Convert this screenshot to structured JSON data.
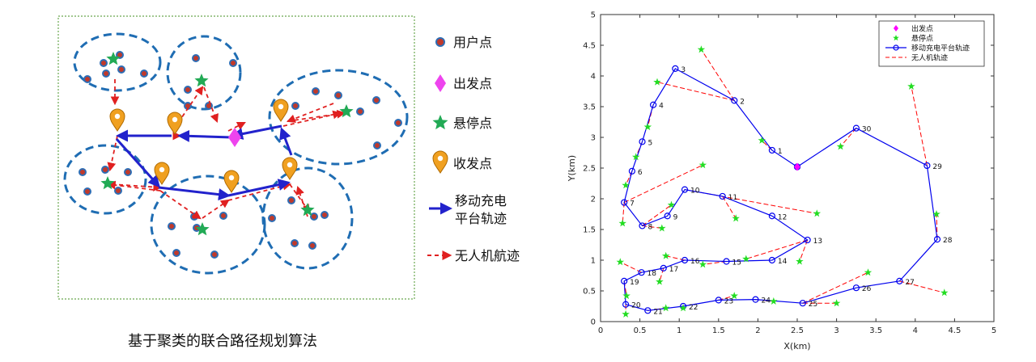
{
  "left_diagram": {
    "caption": "基于聚类的联合路径规划算法",
    "legend": {
      "user_point": "用户点",
      "start_point": "出发点",
      "hover_point": "悬停点",
      "transceiver_point": "收发点",
      "platform_track": "移动充电平台轨迹",
      "drone_track": "无人机航迹"
    },
    "colors": {
      "user_point": "#c0392b",
      "user_point_ring": "#2e6db4",
      "cluster": "#1f6db3",
      "start": "#ee44ee",
      "hover": "#22aa55",
      "transceiver": "#f0a020",
      "platform": "#2222cc",
      "drone": "#e02020",
      "frame": "#6aa84f"
    }
  },
  "chart_data": {
    "type": "line",
    "title": "",
    "xlabel": "X(km)",
    "ylabel": "Y(km)",
    "xlim": [
      0,
      5
    ],
    "ylim": [
      0,
      5
    ],
    "xticks": [
      "0",
      "0.5",
      "1",
      "1.5",
      "2",
      "2.5",
      "3",
      "3.5",
      "4",
      "4.5",
      "5"
    ],
    "yticks": [
      "0",
      "0.5",
      "1",
      "1.5",
      "2",
      "2.5",
      "3",
      "3.5",
      "4",
      "4.5",
      "5"
    ],
    "grid": false,
    "legend_position": "top-right",
    "series": [
      {
        "name": "出发点",
        "marker": "diamond",
        "color": "#ff00ff",
        "points": [
          {
            "x": 2.5,
            "y": 2.52
          }
        ]
      },
      {
        "name": "悬停点",
        "marker": "star",
        "color": "#22dd22",
        "points": [
          {
            "x": 1.28,
            "y": 4.43
          },
          {
            "x": 0.72,
            "y": 3.9
          },
          {
            "x": 2.05,
            "y": 2.95
          },
          {
            "x": 3.05,
            "y": 2.85
          },
          {
            "x": 3.95,
            "y": 3.83
          },
          {
            "x": 0.6,
            "y": 3.17
          },
          {
            "x": 0.45,
            "y": 2.68
          },
          {
            "x": 0.32,
            "y": 2.22
          },
          {
            "x": 1.3,
            "y": 2.55
          },
          {
            "x": 0.9,
            "y": 1.9
          },
          {
            "x": 0.78,
            "y": 1.52
          },
          {
            "x": 0.28,
            "y": 1.6
          },
          {
            "x": 1.72,
            "y": 1.68
          },
          {
            "x": 2.75,
            "y": 1.76
          },
          {
            "x": 4.27,
            "y": 1.75
          },
          {
            "x": 0.83,
            "y": 1.07
          },
          {
            "x": 1.3,
            "y": 0.93
          },
          {
            "x": 1.85,
            "y": 1.02
          },
          {
            "x": 2.53,
            "y": 0.98
          },
          {
            "x": 0.25,
            "y": 0.97
          },
          {
            "x": 0.75,
            "y": 0.65
          },
          {
            "x": 0.33,
            "y": 0.42
          },
          {
            "x": 0.32,
            "y": 0.12
          },
          {
            "x": 0.83,
            "y": 0.22
          },
          {
            "x": 1.05,
            "y": 0.22
          },
          {
            "x": 1.7,
            "y": 0.42
          },
          {
            "x": 2.2,
            "y": 0.33
          },
          {
            "x": 3.0,
            "y": 0.3
          },
          {
            "x": 3.4,
            "y": 0.8
          },
          {
            "x": 4.37,
            "y": 0.47
          }
        ]
      },
      {
        "name": "移动充电平台轨迹",
        "marker": "circle",
        "color": "#0000ee",
        "points": [
          {
            "x": 2.5,
            "y": 2.52,
            "label": ""
          },
          {
            "x": 2.18,
            "y": 2.79,
            "label": "1"
          },
          {
            "x": 1.7,
            "y": 3.6,
            "label": "2"
          },
          {
            "x": 0.95,
            "y": 4.12,
            "label": "3"
          },
          {
            "x": 0.67,
            "y": 3.53,
            "label": "4"
          },
          {
            "x": 0.53,
            "y": 2.93,
            "label": "5"
          },
          {
            "x": 0.4,
            "y": 2.45,
            "label": "6"
          },
          {
            "x": 0.3,
            "y": 1.94,
            "label": "7"
          },
          {
            "x": 0.53,
            "y": 1.56,
            "label": "8"
          },
          {
            "x": 0.85,
            "y": 1.72,
            "label": "9"
          },
          {
            "x": 1.07,
            "y": 2.15,
            "label": "10"
          },
          {
            "x": 1.55,
            "y": 2.04,
            "label": "11"
          },
          {
            "x": 2.18,
            "y": 1.72,
            "label": "12"
          },
          {
            "x": 2.63,
            "y": 1.33,
            "label": "13"
          },
          {
            "x": 2.18,
            "y": 1.0,
            "label": "14"
          },
          {
            "x": 1.6,
            "y": 0.98,
            "label": "15"
          },
          {
            "x": 1.07,
            "y": 1.0,
            "label": "16"
          },
          {
            "x": 0.8,
            "y": 0.87,
            "label": "17"
          },
          {
            "x": 0.52,
            "y": 0.8,
            "label": "18"
          },
          {
            "x": 0.3,
            "y": 0.66,
            "label": "19"
          },
          {
            "x": 0.32,
            "y": 0.28,
            "label": "20"
          },
          {
            "x": 0.6,
            "y": 0.18,
            "label": "21"
          },
          {
            "x": 1.05,
            "y": 0.25,
            "label": "22"
          },
          {
            "x": 1.5,
            "y": 0.35,
            "label": "23"
          },
          {
            "x": 1.97,
            "y": 0.36,
            "label": "24"
          },
          {
            "x": 2.57,
            "y": 0.3,
            "label": "25"
          },
          {
            "x": 3.25,
            "y": 0.55,
            "label": "26"
          },
          {
            "x": 3.8,
            "y": 0.66,
            "label": "27"
          },
          {
            "x": 4.28,
            "y": 1.34,
            "label": "28"
          },
          {
            "x": 4.15,
            "y": 2.54,
            "label": "29"
          },
          {
            "x": 3.25,
            "y": 3.15,
            "label": "30"
          },
          {
            "x": 2.5,
            "y": 2.52,
            "label": ""
          }
        ]
      },
      {
        "name": "无人机轨迹",
        "marker": "none",
        "color": "#ff0000",
        "style": "dashed",
        "segments": [
          [
            {
              "x": 2.18,
              "y": 2.79
            },
            {
              "x": 2.05,
              "y": 2.95
            }
          ],
          [
            {
              "x": 1.7,
              "y": 3.6
            },
            {
              "x": 1.28,
              "y": 4.43
            }
          ],
          [
            {
              "x": 1.7,
              "y": 3.6
            },
            {
              "x": 0.72,
              "y": 3.9
            }
          ],
          [
            {
              "x": 0.67,
              "y": 3.53
            },
            {
              "x": 0.6,
              "y": 3.17
            }
          ],
          [
            {
              "x": 0.53,
              "y": 2.93
            },
            {
              "x": 0.45,
              "y": 2.68
            }
          ],
          [
            {
              "x": 0.4,
              "y": 2.45
            },
            {
              "x": 0.32,
              "y": 2.22
            }
          ],
          [
            {
              "x": 0.3,
              "y": 1.94
            },
            {
              "x": 0.28,
              "y": 1.6
            }
          ],
          [
            {
              "x": 0.3,
              "y": 1.94
            },
            {
              "x": 1.3,
              "y": 2.55
            }
          ],
          [
            {
              "x": 0.53,
              "y": 1.56
            },
            {
              "x": 0.9,
              "y": 1.9
            }
          ],
          [
            {
              "x": 0.53,
              "y": 1.56
            },
            {
              "x": 0.78,
              "y": 1.52
            }
          ],
          [
            {
              "x": 1.55,
              "y": 2.04
            },
            {
              "x": 1.72,
              "y": 1.68
            }
          ],
          [
            {
              "x": 1.07,
              "y": 2.15
            },
            {
              "x": 2.75,
              "y": 1.76
            }
          ],
          [
            {
              "x": 2.63,
              "y": 1.33
            },
            {
              "x": 2.53,
              "y": 0.98
            }
          ],
          [
            {
              "x": 2.63,
              "y": 1.33
            },
            {
              "x": 1.85,
              "y": 1.02
            }
          ],
          [
            {
              "x": 1.6,
              "y": 0.98
            },
            {
              "x": 1.3,
              "y": 0.93
            }
          ],
          [
            {
              "x": 1.07,
              "y": 1.0
            },
            {
              "x": 0.83,
              "y": 1.07
            }
          ],
          [
            {
              "x": 0.52,
              "y": 0.8
            },
            {
              "x": 0.25,
              "y": 0.97
            }
          ],
          [
            {
              "x": 0.8,
              "y": 0.87
            },
            {
              "x": 0.75,
              "y": 0.65
            }
          ],
          [
            {
              "x": 0.3,
              "y": 0.66
            },
            {
              "x": 0.33,
              "y": 0.42
            }
          ],
          [
            {
              "x": 0.32,
              "y": 0.28
            },
            {
              "x": 0.32,
              "y": 0.12
            }
          ],
          [
            {
              "x": 0.6,
              "y": 0.18
            },
            {
              "x": 0.83,
              "y": 0.22
            }
          ],
          [
            {
              "x": 1.5,
              "y": 0.35
            },
            {
              "x": 1.7,
              "y": 0.42
            }
          ],
          [
            {
              "x": 1.97,
              "y": 0.36
            },
            {
              "x": 2.2,
              "y": 0.33
            }
          ],
          [
            {
              "x": 2.57,
              "y": 0.3
            },
            {
              "x": 3.0,
              "y": 0.3
            }
          ],
          [
            {
              "x": 2.57,
              "y": 0.3
            },
            {
              "x": 3.4,
              "y": 0.8
            }
          ],
          [
            {
              "x": 3.8,
              "y": 0.66
            },
            {
              "x": 4.37,
              "y": 0.47
            }
          ],
          [
            {
              "x": 4.28,
              "y": 1.34
            },
            {
              "x": 4.27,
              "y": 1.75
            }
          ],
          [
            {
              "x": 4.15,
              "y": 2.54
            },
            {
              "x": 3.95,
              "y": 3.83
            }
          ],
          [
            {
              "x": 3.25,
              "y": 3.15
            },
            {
              "x": 3.05,
              "y": 2.85
            }
          ]
        ]
      }
    ]
  }
}
